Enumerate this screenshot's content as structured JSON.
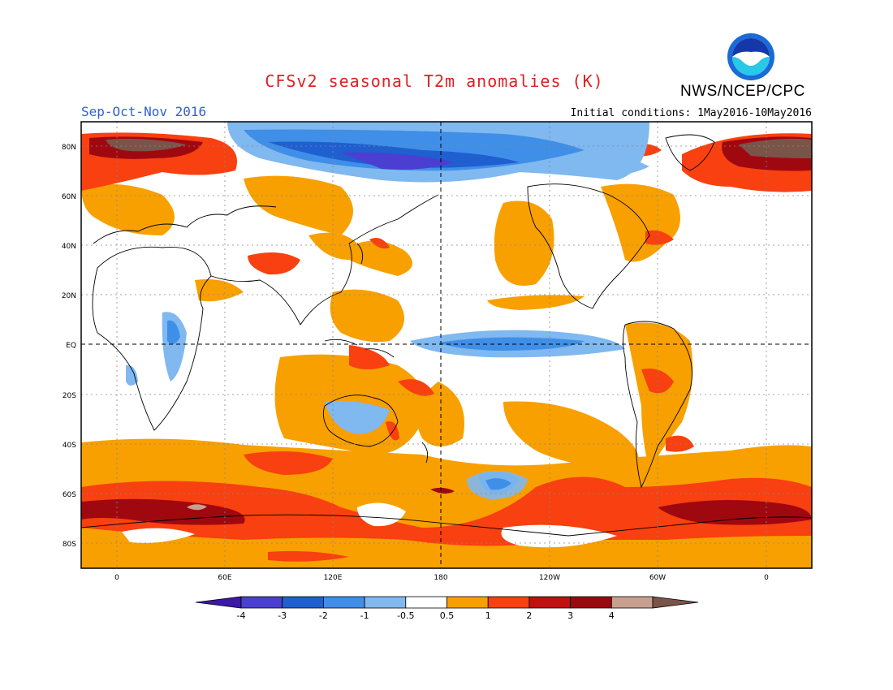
{
  "header": {
    "title": "CFSv2 seasonal T2m anomalies (K)",
    "agency": "NWS/NCEP/CPC",
    "season": "Sep-Oct-Nov 2016",
    "initial_conditions": "Initial conditions: 1May2016-10May2016",
    "logo_text": "NOAA"
  },
  "axes": {
    "lat_labels": [
      "80N",
      "60N",
      "40N",
      "20N",
      "EQ",
      "20S",
      "40S",
      "60S",
      "80S"
    ],
    "lon_labels": [
      "0",
      "60E",
      "120E",
      "180",
      "120W",
      "60W",
      "0"
    ]
  },
  "colorbar": {
    "labels": [
      "-4",
      "-3",
      "-2",
      "-1",
      "-0.5",
      "0.5",
      "1",
      "2",
      "3",
      "4"
    ],
    "colors": [
      "#3b18a8",
      "#4a3fd0",
      "#1f5fd0",
      "#3f8fe8",
      "#80b8f0",
      "#ffffff",
      "#f8a000",
      "#f84010",
      "#c01010",
      "#9c0810",
      "#c8a090",
      "#7a5448"
    ]
  },
  "colors": {
    "title": "#e02020",
    "season": "#2f5fd8",
    "orange": "#f8a000",
    "red_orange": "#f84010",
    "dark_red": "#a00810",
    "brown": "#7a5448",
    "tan": "#c8a090",
    "light_blue": "#80b8f0",
    "mid_blue": "#3f8fe8",
    "blue": "#1f5fd0",
    "indigo": "#4a3fd0"
  }
}
